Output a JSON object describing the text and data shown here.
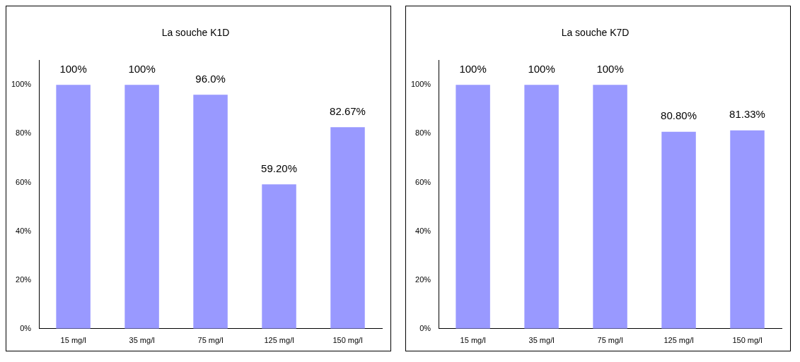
{
  "chart_data": [
    {
      "type": "bar",
      "title": "La souche K1D",
      "categories": [
        "15 mg/l",
        "35 mg/l",
        "75 mg/l",
        "125 mg/l",
        "150 mg/l"
      ],
      "values": [
        100,
        100,
        96.0,
        59.2,
        82.67
      ],
      "value_labels": [
        "100%",
        "100%",
        "96.0%",
        "59.20%",
        "82.67%"
      ],
      "color": "#9999ff",
      "ylim": [
        0,
        110
      ],
      "yticks": [
        {
          "value": 0,
          "label": "0%"
        },
        {
          "value": 20,
          "label": "20%"
        },
        {
          "value": 40,
          "label": "40%"
        },
        {
          "value": 60,
          "label": "60%"
        },
        {
          "value": 80,
          "label": "80%"
        },
        {
          "value": 100,
          "label": "100%"
        }
      ]
    },
    {
      "type": "bar",
      "title": "La souche K7D",
      "categories": [
        "15 mg/l",
        "35 mg/l",
        "75 mg/l",
        "125 mg/l",
        "150 mg/l"
      ],
      "values": [
        100,
        100,
        100,
        80.8,
        81.33
      ],
      "value_labels": [
        "100%",
        "100%",
        "100%",
        "80.80%",
        "81.33%"
      ],
      "color": "#9999ff",
      "ylim": [
        0,
        110
      ],
      "yticks": [
        {
          "value": 0,
          "label": "0%"
        },
        {
          "value": 20,
          "label": "20%"
        },
        {
          "value": 40,
          "label": "40%"
        },
        {
          "value": 60,
          "label": "60%"
        },
        {
          "value": 80,
          "label": "80%"
        },
        {
          "value": 100,
          "label": "100%"
        }
      ]
    }
  ]
}
